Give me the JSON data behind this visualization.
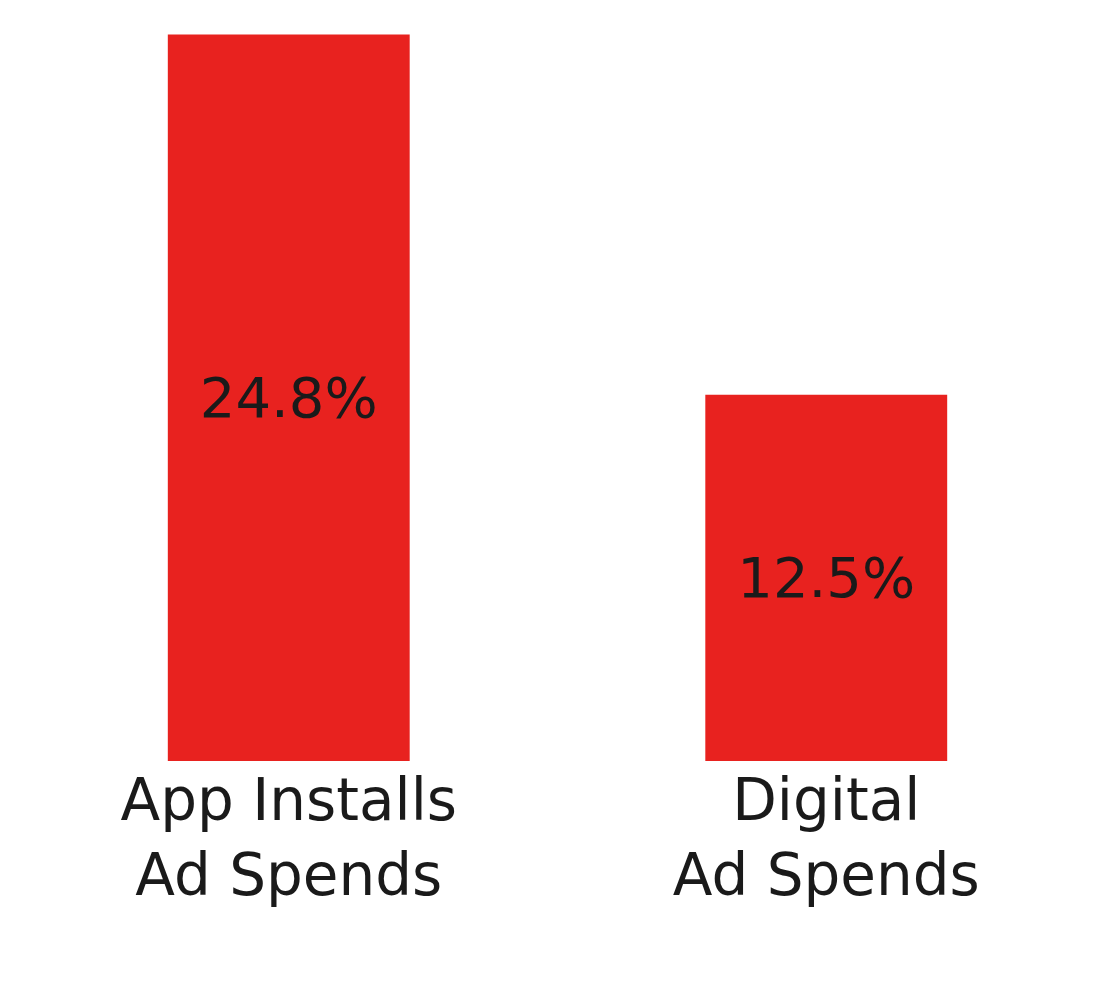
{
  "chart_data": {
    "type": "bar",
    "categories": [
      "App Installs\nAd Spends",
      "Digital\nAd Spends"
    ],
    "values": [
      24.8,
      12.5
    ],
    "value_labels": [
      "24.8%",
      "12.5%"
    ],
    "color": "#e8221f"
  }
}
